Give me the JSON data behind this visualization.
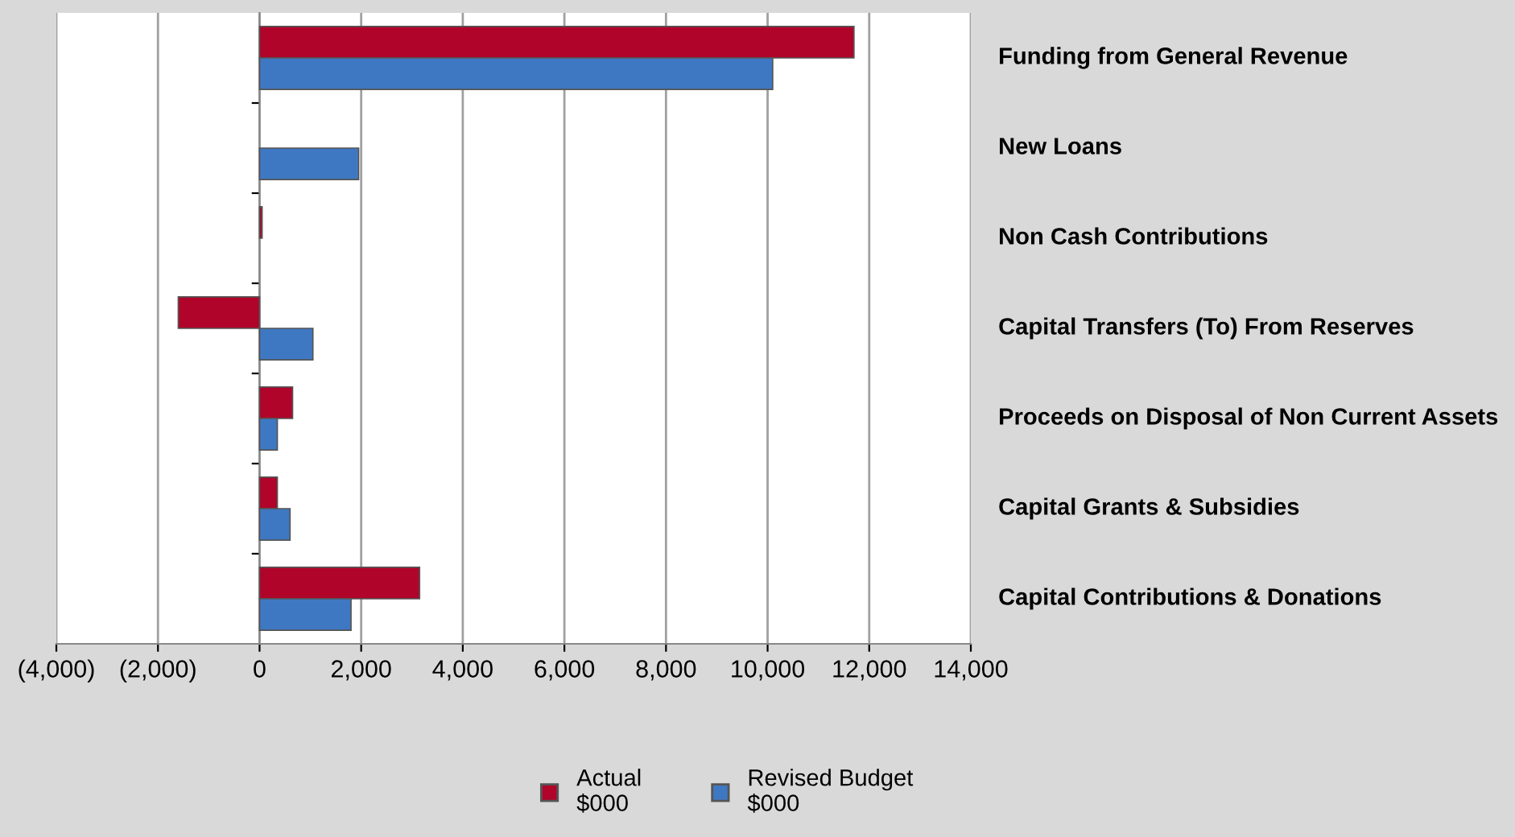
{
  "chart_data": {
    "type": "bar",
    "orientation": "horizontal",
    "categories": [
      "Funding from General Revenue",
      "New Loans",
      "Non Cash Contributions",
      "Capital Transfers (To) From Reserves",
      "Proceeds on Disposal of Non Current Assets",
      "Capital Grants & Subsidies",
      "Capital Contributions & Donations"
    ],
    "series": [
      {
        "name": "Actual\n$000",
        "color": "#b0042a",
        "values": [
          11700,
          null,
          50,
          -1600,
          650,
          350,
          3150
        ]
      },
      {
        "name": "Revised Budget\n$000",
        "color": "#3f78c2",
        "values": [
          10100,
          1950,
          null,
          1050,
          350,
          600,
          1800
        ]
      }
    ],
    "xlim": [
      -4000,
      14000
    ],
    "xticks": [
      {
        "value": -4000,
        "label": "(4,000)"
      },
      {
        "value": -2000,
        "label": "(2,000)"
      },
      0,
      {
        "value": 2000,
        "label": "2,000"
      },
      {
        "value": 4000,
        "label": "4,000"
      },
      {
        "value": 6000,
        "label": "6,000"
      },
      {
        "value": 8000,
        "label": "8,000"
      },
      {
        "value": 10000,
        "label": "10,000"
      },
      {
        "value": 12000,
        "label": "12,000"
      },
      {
        "value": 14000,
        "label": "14,000"
      }
    ],
    "grid": "x",
    "legend": "bottom"
  }
}
